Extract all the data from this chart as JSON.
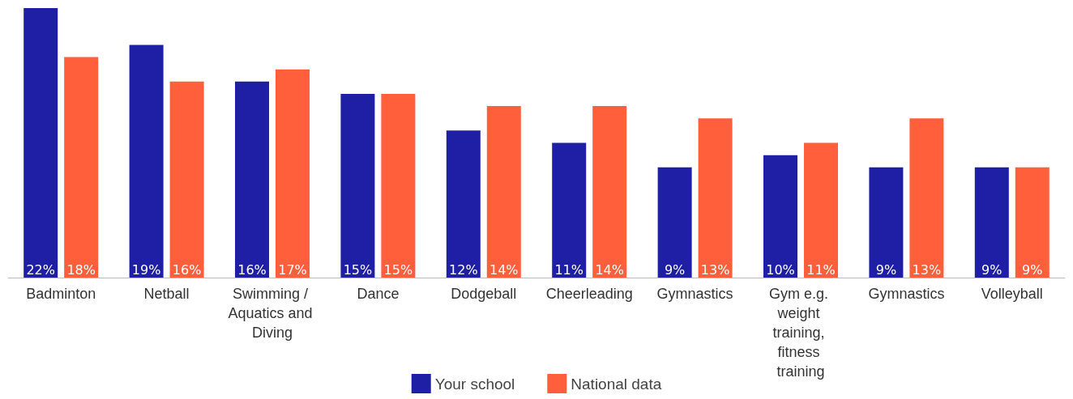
{
  "chart_data": {
    "type": "bar",
    "categories": [
      "Badminton",
      "Netball",
      "Swimming / Aquatics and Diving",
      "Dance",
      "Dodgeball",
      "Cheerleading",
      "Gymnastics",
      "Gym e.g. weight training, fitness training",
      "Gymnastics",
      "Volleyball"
    ],
    "series": [
      {
        "name": "Your school",
        "color": "#1f1fa6",
        "values": [
          22,
          19,
          16,
          15,
          12,
          11,
          9,
          10,
          9,
          9
        ],
        "value_labels": [
          "22%",
          "19%",
          "16%",
          "15%",
          "12%",
          "11%",
          "9%",
          "10%",
          "9%",
          "9%"
        ]
      },
      {
        "name": "National data",
        "color": "#ff5f3b",
        "values": [
          18,
          16,
          17,
          15,
          14,
          14,
          13,
          11,
          13,
          9
        ],
        "value_labels": [
          "18%",
          "16%",
          "17%",
          "15%",
          "14%",
          "14%",
          "13%",
          "11%",
          "13%",
          "9%"
        ]
      }
    ],
    "grid": false,
    "legend": "bottom"
  }
}
